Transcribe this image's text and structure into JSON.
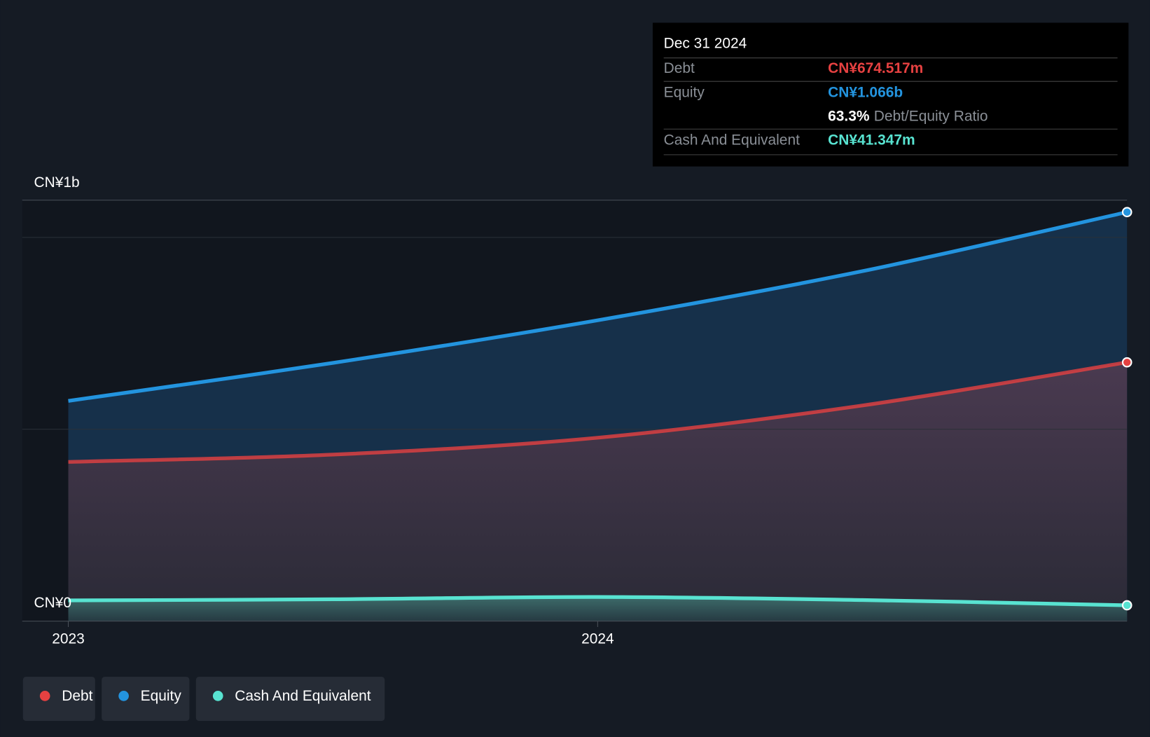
{
  "chart_data": {
    "type": "area",
    "x": [
      2023,
      2023.5,
      2024,
      2024.5,
      2025
    ],
    "xlim": [
      2022.913,
      2025
    ],
    "xticks": [
      2023,
      2024
    ],
    "ylim": [
      0,
      1.097
    ],
    "yticks": [
      {
        "value": 0,
        "label": "CN¥0"
      },
      {
        "value": 0.5,
        "label": null
      },
      {
        "value": 1,
        "label": "CN¥1b"
      }
    ],
    "grid": true,
    "series": [
      {
        "name": "Equity",
        "color": "#2394df",
        "values": [
          0.574,
          0.673,
          0.784,
          0.912,
          1.066
        ]
      },
      {
        "name": "Debt",
        "color": "#e64141",
        "values": [
          0.415,
          0.434,
          0.478,
          0.562,
          0.6745
        ]
      },
      {
        "name": "Cash And Equivalent",
        "color": "#58e3d1",
        "values": [
          0.054,
          0.057,
          0.063,
          0.055,
          0.0413
        ]
      }
    ]
  },
  "tooltip": {
    "title": "Dec 31 2024",
    "rows": [
      {
        "label": "Debt",
        "value": "CN¥674.517m"
      },
      {
        "label": "Equity",
        "value": "CN¥1.066b"
      },
      {
        "label": "Cash And Equivalent",
        "value": "CN¥41.347m"
      }
    ],
    "ratio": "63.3%",
    "ratio_label": "Debt/Equity Ratio"
  },
  "legend": [
    "Debt",
    "Equity",
    "Cash And Equivalent"
  ]
}
